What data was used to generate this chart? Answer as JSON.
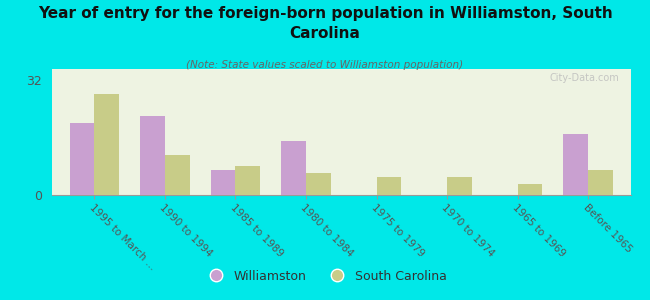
{
  "title": "Year of entry for the foreign-born population in Williamston, South\nCarolina",
  "subtitle": "(Note: State values scaled to Williamston population)",
  "categories": [
    "1995 to March ...",
    "1990 to 1994",
    "1985 to 1989",
    "1980 to 1984",
    "1975 to 1979",
    "1970 to 1974",
    "1965 to 1969",
    "Before 1965"
  ],
  "williamston_values": [
    20,
    22,
    7,
    15,
    0,
    0,
    0,
    17
  ],
  "sc_values": [
    28,
    11,
    8,
    6,
    5,
    5,
    3,
    7
  ],
  "williamston_color": "#c9a0d0",
  "sc_color": "#c8cc88",
  "background_color": "#00e8e8",
  "plot_bg_color": "#eef3e2",
  "ylabel_value": 32,
  "ylim": [
    0,
    35
  ],
  "bar_width": 0.35,
  "legend_labels": [
    "Williamston",
    "South Carolina"
  ],
  "watermark": "City-Data.com",
  "title_fontsize": 11,
  "subtitle_fontsize": 7.5,
  "tick_fontsize": 7.5
}
